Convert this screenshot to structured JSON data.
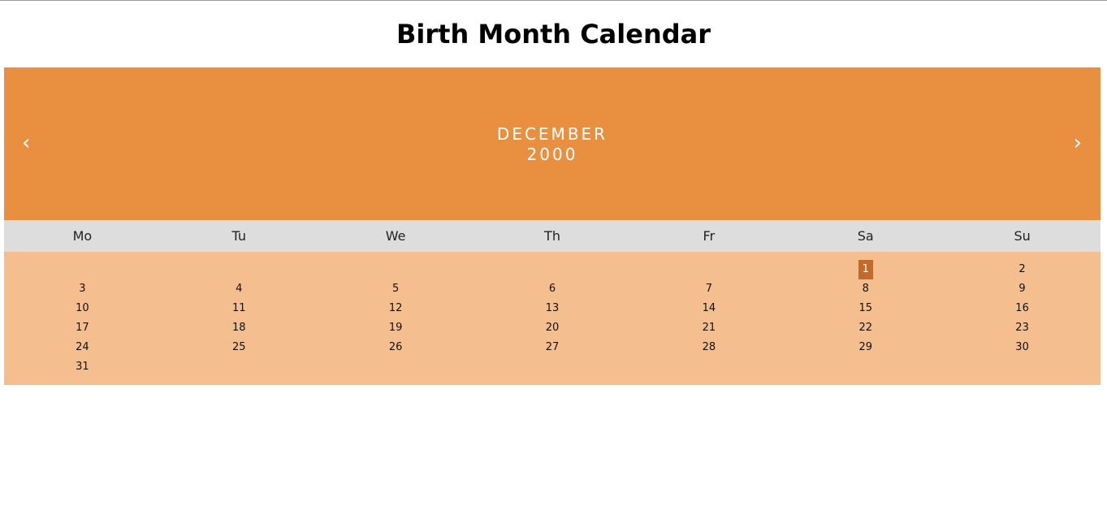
{
  "page": {
    "title": "Birth Month Calendar"
  },
  "calendar": {
    "month": "DECEMBER",
    "year": "2000",
    "prev_icon": "‹",
    "next_icon": "›",
    "weekdays": [
      "Mo",
      "Tu",
      "We",
      "Th",
      "Fr",
      "Sa",
      "Su"
    ],
    "days": [
      "",
      "",
      "",
      "",
      "",
      "1",
      "2",
      "3",
      "4",
      "5",
      "6",
      "7",
      "8",
      "9",
      "10",
      "11",
      "12",
      "13",
      "14",
      "15",
      "16",
      "17",
      "18",
      "19",
      "20",
      "21",
      "22",
      "23",
      "24",
      "25",
      "26",
      "27",
      "28",
      "29",
      "30",
      "31"
    ],
    "active_day": "1"
  },
  "colors": {
    "header_bg": "#e88f40",
    "weekday_bg": "#dddddd",
    "days_bg": "#f5be8e",
    "active_day_bg": "#c5692a"
  },
  "icons": {
    "prev": "chevron-left-icon",
    "next": "chevron-right-icon"
  }
}
